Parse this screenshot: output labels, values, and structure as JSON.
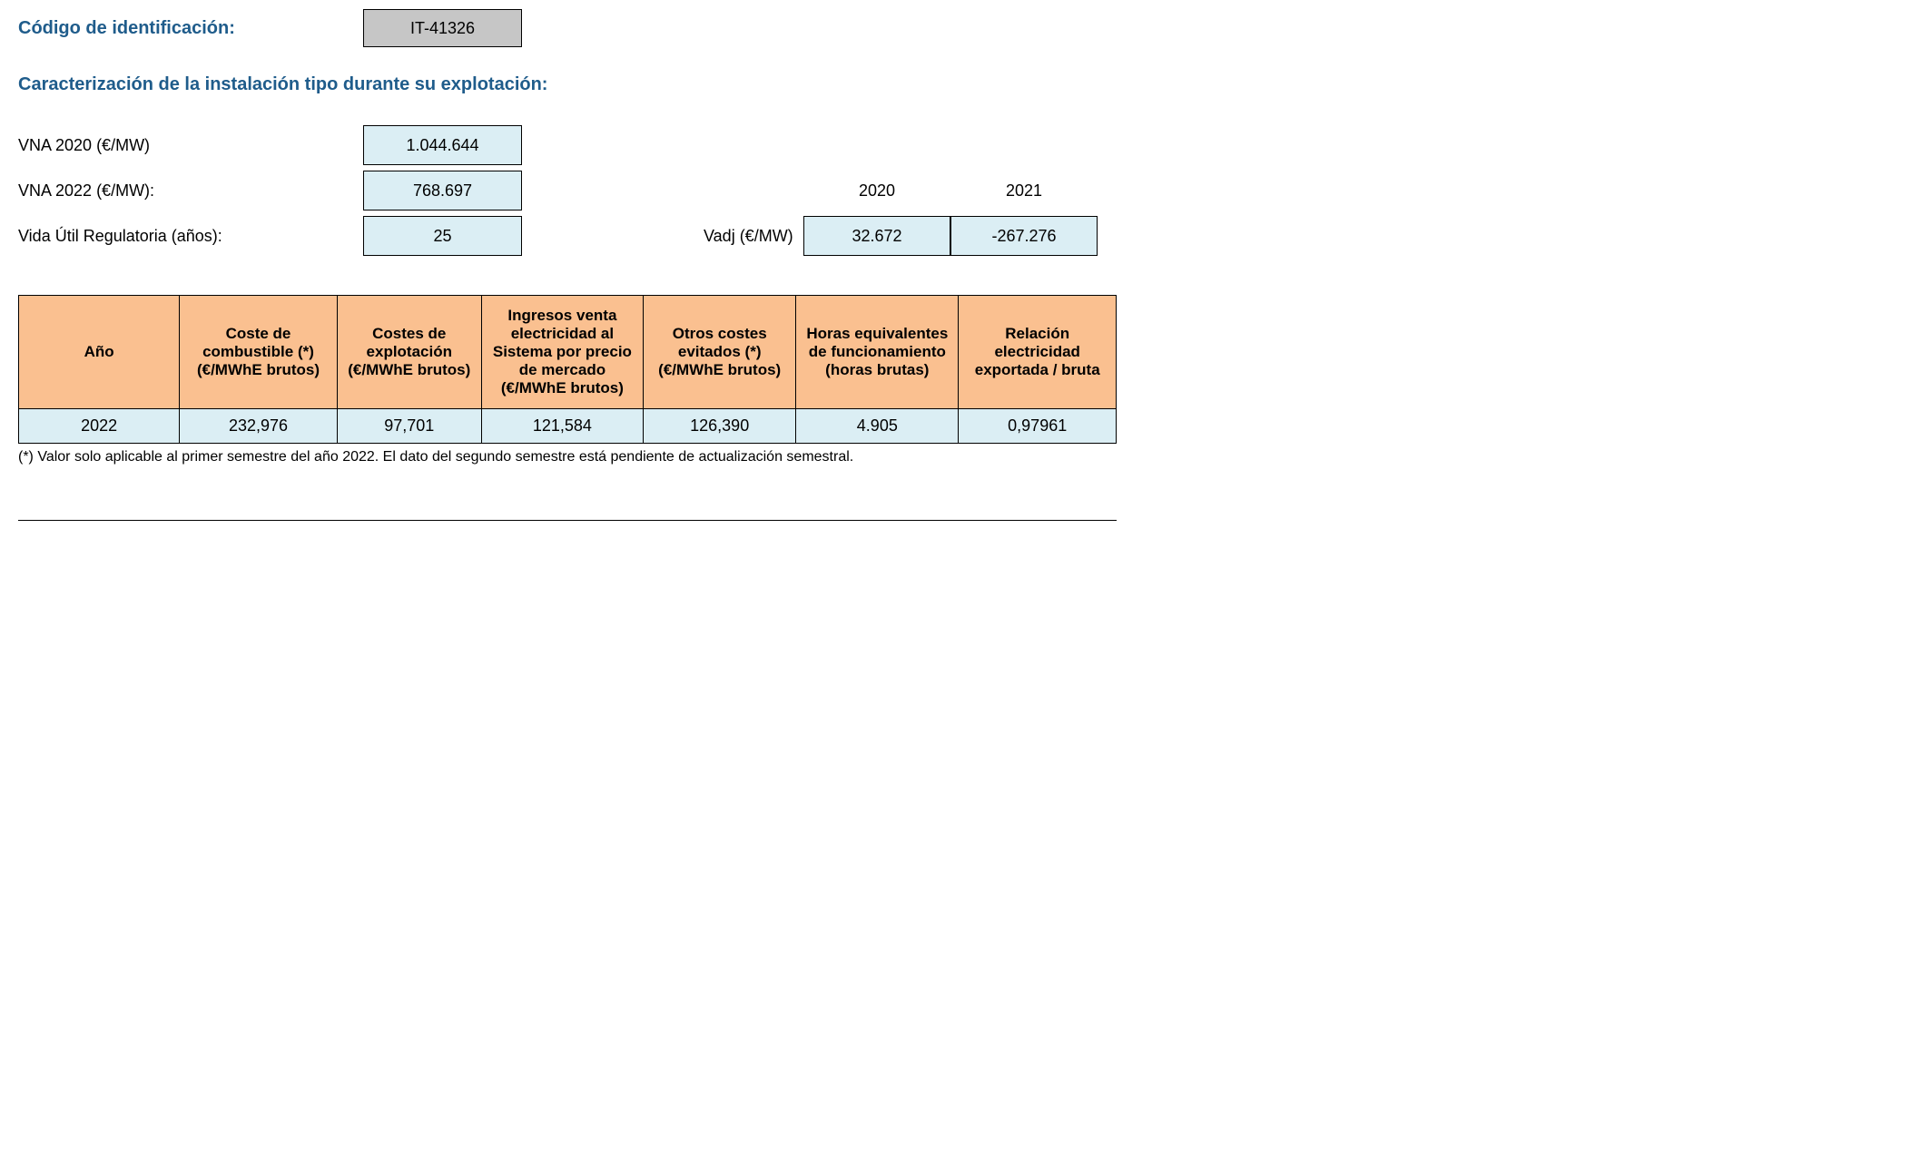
{
  "header": {
    "id_label": "Código de identificación:",
    "id_value": "IT-41326"
  },
  "section_title": "Caracterización de la instalación tipo durante su explotación:",
  "vna": {
    "rows": [
      {
        "label": "VNA 2020 (€/MW)",
        "value": "1.044.644"
      },
      {
        "label": "VNA 2022 (€/MW):",
        "value": "768.697"
      },
      {
        "label": "Vida Útil Regulatoria (años):",
        "value": "25"
      }
    ]
  },
  "vadj": {
    "label": "Vadj (€/MW)",
    "years": [
      "2020",
      "2021"
    ],
    "values": [
      "32.672",
      "-267.276"
    ]
  },
  "table": {
    "columns": [
      "Año",
      "Coste de combustible (*) (€/MWhE brutos)",
      "Costes de explotación (€/MWhE brutos)",
      "Ingresos venta electricidad al Sistema por precio de mercado (€/MWhE brutos)",
      "Otros costes evitados (*) (€/MWhE brutos)",
      "Horas equivalentes de funcionamiento (horas brutas)",
      "Relación electricidad exportada / bruta"
    ],
    "rows": [
      [
        "2022",
        "232,976",
        "97,701",
        "121,584",
        "126,390",
        "4.905",
        "0,97961"
      ]
    ],
    "col_widths": [
      "180px",
      "175px",
      "160px",
      "180px",
      "170px",
      "180px",
      "175px"
    ]
  },
  "footnote": "(*) Valor solo aplicable al primer semestre del año 2022. El dato del segundo semestre está pendiente de actualización semestral."
}
